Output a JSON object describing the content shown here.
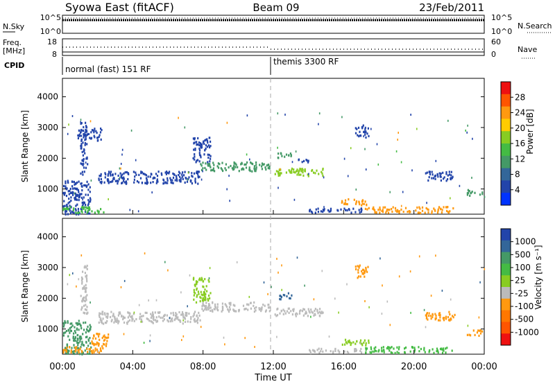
{
  "header": {
    "station": "Syowa East (fitACF)",
    "beam": "Beam 09",
    "date": "23/Feb/2011"
  },
  "top_panels": {
    "nsky_label": "N.Sky",
    "nsearch_label": "N.Search",
    "nsky_ticks": [
      "10^5",
      "10^0"
    ],
    "nsearch_ticks": [
      "10^5",
      "10^0"
    ],
    "freq_label": "Freq.",
    "freq_unit": "[MHz]",
    "freq_ticks": [
      "18",
      "8"
    ],
    "nave_label": "Nave",
    "nave_ticks": [
      "60",
      "0"
    ],
    "cpid_label": "CPID",
    "modes": [
      {
        "name": "normal (fast) 151 RF",
        "start_hour": 0
      },
      {
        "name": "themis 3300 RF",
        "start_hour": 12
      }
    ]
  },
  "chart_data": [
    {
      "type": "heatmap",
      "panel": "power",
      "ylabel": "Slant Range [km]",
      "yticks": [
        1000,
        2000,
        3000,
        4000
      ],
      "ylim": [
        180,
        4600
      ],
      "xlim_hours": [
        0,
        24
      ],
      "colorbar_label": "Power [dB]",
      "colorbar_ticks": [
        "28",
        "24",
        "20",
        "16",
        "12",
        "8",
        "4"
      ],
      "colorbar_colors": [
        "#ee1111",
        "#ff5500",
        "#ff9910",
        "#ffcc00",
        "#88cc22",
        "#44bb44",
        "#449966",
        "#336699",
        "#2244aa",
        "#0033ff"
      ],
      "echo_regions": [
        {
          "t0": 0.0,
          "t1": 1.6,
          "r0": 200,
          "r1": 1300,
          "color": "#2244aa"
        },
        {
          "t0": 0.0,
          "t1": 2.4,
          "r0": 250,
          "r1": 450,
          "color": "#44bb44"
        },
        {
          "t0": 1.0,
          "t1": 1.4,
          "r0": 1500,
          "r1": 3200,
          "color": "#2244aa"
        },
        {
          "t0": 0.8,
          "t1": 2.2,
          "r0": 2600,
          "r1": 3000,
          "color": "#2244aa"
        },
        {
          "t0": 2.0,
          "t1": 7.8,
          "r0": 1200,
          "r1": 1600,
          "color": "#2244aa"
        },
        {
          "t0": 7.8,
          "t1": 11.8,
          "r0": 1600,
          "r1": 1900,
          "color": "#449966"
        },
        {
          "t0": 7.4,
          "t1": 8.4,
          "r0": 1900,
          "r1": 2700,
          "color": "#2244aa"
        },
        {
          "t0": 11.9,
          "t1": 14.8,
          "r0": 1450,
          "r1": 1700,
          "color": "#88cc22"
        },
        {
          "t0": 12.2,
          "t1": 13.0,
          "r0": 2000,
          "r1": 2200,
          "color": "#449966"
        },
        {
          "t0": 13.0,
          "t1": 14.0,
          "r0": 1900,
          "r1": 2000,
          "color": "#2244aa"
        },
        {
          "t0": 15.8,
          "t1": 17.4,
          "r0": 500,
          "r1": 700,
          "color": "#ff9910"
        },
        {
          "t0": 17.2,
          "t1": 22.2,
          "r0": 250,
          "r1": 450,
          "color": "#ff9910"
        },
        {
          "t0": 20.6,
          "t1": 22.4,
          "r0": 1300,
          "r1": 1600,
          "color": "#2244aa"
        },
        {
          "t0": 23.0,
          "t1": 23.9,
          "r0": 800,
          "r1": 1000,
          "color": "#449966"
        },
        {
          "t0": 14.0,
          "t1": 17.0,
          "r0": 250,
          "r1": 400,
          "color": "#2244aa"
        },
        {
          "t0": 16.6,
          "t1": 17.4,
          "r0": 2700,
          "r1": 3100,
          "color": "#2244aa"
        }
      ]
    },
    {
      "type": "heatmap",
      "panel": "velocity",
      "ylabel": "Slant Range [km]",
      "yticks": [
        1000,
        2000,
        3000,
        4000
      ],
      "ylim": [
        180,
        4600
      ],
      "xlim_hours": [
        0,
        24
      ],
      "xticks": [
        "00:00",
        "04:00",
        "08:00",
        "12:00",
        "16:00",
        "20:00",
        "00:00"
      ],
      "xlabel": "Time UT",
      "colorbar_label": "Velocity [m s⁻¹]",
      "colorbar_ticks": [
        "1000",
        "500",
        "100",
        "25",
        "-25",
        "-100",
        "-500",
        "-1000"
      ],
      "colorbar_colors": [
        "#2244aa",
        "#336699",
        "#449966",
        "#44bb44",
        "#88cc22",
        "#bbbbbb",
        "#ff9910",
        "#ff7700",
        "#ff5500",
        "#ee1111"
      ],
      "echo_regions": [
        {
          "t0": 0.0,
          "t1": 1.6,
          "r0": 200,
          "r1": 1300,
          "color": "#449966"
        },
        {
          "t0": 0.0,
          "t1": 2.4,
          "r0": 250,
          "r1": 450,
          "color": "#ff9910"
        },
        {
          "t0": 1.6,
          "t1": 2.6,
          "r0": 400,
          "r1": 900,
          "color": "#ff9910"
        },
        {
          "t0": 1.0,
          "t1": 1.4,
          "r0": 1500,
          "r1": 3200,
          "color": "#bbbbbb"
        },
        {
          "t0": 2.0,
          "t1": 7.8,
          "r0": 1200,
          "r1": 1600,
          "color": "#bbbbbb"
        },
        {
          "t0": 7.8,
          "t1": 11.8,
          "r0": 1600,
          "r1": 1900,
          "color": "#bbbbbb"
        },
        {
          "t0": 7.4,
          "t1": 8.4,
          "r0": 1900,
          "r1": 2700,
          "color": "#88cc22"
        },
        {
          "t0": 11.9,
          "t1": 14.8,
          "r0": 1450,
          "r1": 1700,
          "color": "#bbbbbb"
        },
        {
          "t0": 12.2,
          "t1": 13.0,
          "r0": 2000,
          "r1": 2200,
          "color": "#336699"
        },
        {
          "t0": 15.8,
          "t1": 17.4,
          "r0": 500,
          "r1": 700,
          "color": "#88cc22"
        },
        {
          "t0": 17.2,
          "t1": 22.2,
          "r0": 250,
          "r1": 450,
          "color": "#44bb44"
        },
        {
          "t0": 20.6,
          "t1": 22.4,
          "r0": 1300,
          "r1": 1600,
          "color": "#ff9910"
        },
        {
          "t0": 23.0,
          "t1": 23.9,
          "r0": 800,
          "r1": 1000,
          "color": "#ff9910"
        },
        {
          "t0": 14.0,
          "t1": 17.0,
          "r0": 250,
          "r1": 400,
          "color": "#bbbbbb"
        },
        {
          "t0": 16.6,
          "t1": 17.4,
          "r0": 2700,
          "r1": 3100,
          "color": "#ff9910"
        }
      ]
    }
  ]
}
